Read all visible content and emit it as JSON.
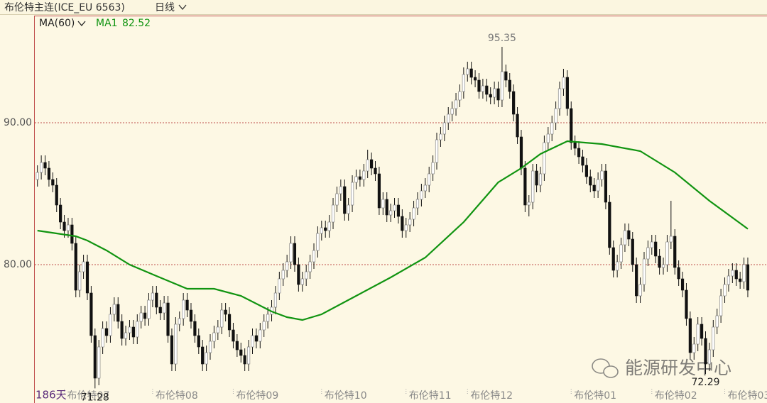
{
  "chart_data": {
    "type": "candlestick",
    "title": "布伦特主连(ICE_EU 6563)",
    "period": "日线",
    "indicator": "MA(60)",
    "days_label": "186天",
    "watermark": "能源研发中心",
    "ylim": [
      71.25,
      97.55
    ],
    "yticks": [
      {
        "value": 80,
        "label": "80.00"
      },
      {
        "value": 90,
        "label": "90.00"
      }
    ],
    "grid": true,
    "grid_color": "#c0504d",
    "xlim": [
      -0.5,
      190
    ],
    "xticks": [
      {
        "value": 7,
        "label": "布伦特07"
      },
      {
        "value": 30,
        "label": "布伦特08"
      },
      {
        "value": 51,
        "label": "布伦特09"
      },
      {
        "value": 74,
        "label": "布伦特10"
      },
      {
        "value": 96,
        "label": "布伦特11"
      },
      {
        "value": 112,
        "label": "布伦特12"
      },
      {
        "value": 139,
        "label": "布伦特01"
      },
      {
        "value": 160,
        "label": "布伦特02"
      },
      {
        "value": 179,
        "label": "布伦特03"
      }
    ],
    "up_color": "#ffffff",
    "down_color": "#111111",
    "open": [
      86.0,
      86.5,
      87.2,
      86.8,
      86.0,
      85.6,
      84.2,
      83.0,
      82.4,
      82.8,
      81.5,
      78.2,
      79.5,
      80.2,
      78.0,
      75.0,
      72.0,
      74.2,
      75.5,
      75.0,
      76.5,
      77.2,
      76.0,
      74.8,
      75.2,
      75.6,
      74.9,
      76.0,
      76.6,
      76.2,
      77.5,
      78.0,
      77.0,
      76.6,
      77.3,
      75.0,
      73.0,
      75.8,
      76.2,
      77.5,
      76.8,
      76.0,
      75.0,
      74.2,
      73.0,
      73.8,
      74.6,
      75.2,
      75.6,
      76.8,
      76.5,
      75.4,
      74.6,
      74.0,
      73.6,
      73.0,
      74.2,
      75.0,
      74.6,
      75.4,
      76.0,
      76.5,
      77.0,
      78.0,
      79.0,
      79.6,
      80.2,
      81.5,
      80.0,
      78.6,
      79.0,
      79.5,
      80.2,
      81.0,
      82.2,
      82.6,
      82.4,
      83.0,
      84.2,
      85.0,
      85.5,
      83.6,
      84.2,
      85.8,
      86.2,
      86.0,
      86.6,
      87.4,
      86.8,
      86.4,
      84.0,
      84.6,
      83.5,
      83.8,
      84.2,
      83.4,
      82.4,
      82.8,
      83.2,
      84.0,
      84.6,
      85.2,
      85.6,
      86.4,
      87.2,
      88.8,
      89.2,
      90.0,
      90.6,
      91.0,
      91.6,
      92.2,
      93.4,
      93.8,
      93.2,
      93.0,
      92.2,
      92.6,
      92.0,
      91.8,
      92.4,
      91.6,
      93.6,
      93.0,
      92.2,
      90.6,
      89.0,
      86.8,
      84.2,
      84.4,
      86.6,
      85.6,
      86.4,
      88.6,
      89.2,
      90.0,
      91.0,
      92.4,
      93.2,
      91.0,
      88.6,
      88.2,
      87.6,
      87.0,
      86.2,
      85.6,
      85.2,
      86.0,
      86.6,
      84.4,
      81.2,
      79.6,
      80.2,
      81.4,
      82.4,
      81.8,
      80.0,
      77.8,
      78.6,
      80.4,
      81.2,
      81.6,
      80.6,
      79.8,
      80.0,
      81.6,
      82.0,
      79.8,
      79.0,
      78.2,
      76.2,
      73.8,
      74.4,
      75.8,
      74.8,
      73.0,
      74.0,
      75.6,
      76.4,
      77.8,
      78.6,
      79.2,
      79.6,
      79.0,
      78.8,
      80.0
    ],
    "high": [
      87.0,
      87.7,
      87.7,
      87.3,
      86.5,
      86.1,
      84.7,
      83.5,
      83.3,
      83.3,
      82.0,
      80.0,
      80.7,
      80.7,
      78.5,
      75.5,
      74.7,
      76.0,
      76.0,
      77.0,
      77.7,
      77.7,
      76.5,
      75.7,
      76.1,
      76.1,
      76.5,
      77.1,
      77.1,
      78.0,
      78.5,
      78.5,
      77.5,
      77.8,
      77.8,
      75.5,
      76.3,
      76.7,
      78.0,
      78.0,
      77.3,
      76.5,
      75.5,
      74.7,
      74.3,
      75.1,
      75.7,
      76.1,
      77.3,
      77.3,
      77.0,
      75.9,
      75.1,
      74.5,
      74.1,
      74.7,
      75.5,
      75.5,
      75.9,
      76.5,
      77.0,
      77.5,
      78.5,
      79.5,
      80.1,
      80.7,
      82.0,
      82.0,
      80.5,
      79.5,
      80.0,
      80.7,
      81.5,
      82.7,
      83.1,
      83.1,
      83.5,
      84.7,
      85.5,
      86.0,
      86.0,
      84.7,
      86.3,
      86.7,
      86.7,
      87.1,
      88.1,
      87.9,
      87.3,
      86.9,
      85.1,
      85.1,
      84.3,
      84.7,
      84.7,
      83.9,
      83.3,
      83.7,
      84.5,
      85.1,
      85.7,
      86.1,
      86.9,
      87.7,
      89.3,
      89.7,
      90.5,
      91.1,
      91.5,
      92.1,
      92.7,
      93.9,
      94.3,
      94.3,
      93.7,
      93.5,
      93.1,
      93.1,
      92.5,
      92.9,
      92.9,
      95.35,
      94.1,
      93.5,
      92.7,
      91.1,
      89.5,
      87.3,
      84.9,
      87.1,
      87.1,
      86.9,
      89.1,
      89.7,
      90.5,
      91.5,
      92.9,
      93.8,
      93.7,
      91.5,
      89.1,
      88.7,
      88.1,
      87.5,
      86.7,
      86.1,
      86.5,
      87.1,
      87.1,
      84.9,
      81.7,
      80.7,
      81.9,
      82.9,
      82.9,
      82.3,
      80.5,
      79.1,
      80.9,
      81.7,
      82.1,
      82.1,
      81.1,
      80.5,
      82.1,
      84.5,
      82.5,
      80.3,
      79.5,
      78.7,
      76.7,
      74.9,
      76.3,
      76.3,
      75.3,
      74.5,
      76.1,
      76.9,
      78.3,
      79.1,
      79.7,
      80.1,
      80.1,
      79.5,
      80.5,
      80.5
    ],
    "low": [
      85.5,
      86.0,
      86.3,
      85.5,
      85.1,
      83.7,
      82.5,
      81.9,
      81.9,
      81.0,
      77.7,
      77.7,
      79.0,
      77.5,
      74.5,
      71.28,
      71.5,
      73.7,
      74.5,
      74.5,
      76.0,
      75.5,
      74.3,
      74.3,
      74.7,
      74.4,
      74.4,
      75.5,
      75.7,
      75.7,
      77.0,
      76.5,
      76.1,
      76.1,
      74.5,
      72.5,
      72.5,
      75.3,
      75.7,
      76.3,
      75.5,
      74.5,
      73.7,
      72.5,
      72.5,
      73.3,
      74.1,
      74.7,
      75.1,
      76.0,
      74.9,
      74.1,
      73.5,
      73.1,
      72.5,
      72.5,
      73.7,
      74.1,
      74.1,
      74.9,
      75.5,
      76.0,
      76.5,
      77.5,
      78.5,
      79.1,
      79.7,
      79.5,
      78.1,
      78.1,
      78.5,
      79.0,
      79.7,
      80.5,
      81.7,
      81.9,
      81.9,
      82.5,
      83.7,
      84.5,
      83.1,
      83.1,
      83.7,
      85.3,
      85.5,
      85.5,
      86.1,
      86.3,
      85.9,
      83.5,
      83.5,
      83.0,
      83.0,
      83.3,
      82.9,
      81.9,
      81.9,
      82.3,
      82.7,
      83.5,
      84.1,
      84.7,
      85.1,
      85.9,
      86.7,
      88.3,
      88.7,
      89.5,
      90.1,
      90.5,
      91.1,
      91.7,
      92.9,
      92.7,
      92.5,
      91.7,
      91.7,
      91.5,
      91.3,
      91.3,
      91.1,
      91.1,
      92.5,
      91.7,
      90.1,
      88.5,
      86.3,
      83.7,
      83.4,
      83.9,
      85.1,
      85.1,
      85.9,
      88.1,
      88.7,
      89.5,
      90.5,
      91.9,
      90.5,
      88.1,
      87.7,
      87.1,
      86.5,
      85.7,
      85.1,
      84.7,
      84.7,
      85.5,
      83.9,
      80.7,
      79.1,
      79.1,
      79.7,
      80.9,
      81.3,
      79.5,
      77.3,
      77.3,
      78.1,
      79.9,
      80.7,
      80.1,
      79.3,
      79.3,
      79.5,
      81.1,
      79.3,
      78.5,
      77.7,
      75.7,
      73.3,
      73.3,
      73.9,
      74.3,
      72.29,
      72.5,
      73.5,
      75.1,
      75.9,
      77.3,
      78.1,
      78.7,
      78.5,
      78.3,
      78.3,
      77.7
    ],
    "close": [
      86.5,
      87.2,
      86.8,
      86.0,
      85.6,
      84.2,
      83.0,
      82.4,
      82.8,
      81.5,
      78.2,
      79.5,
      80.2,
      78.0,
      75.0,
      72.0,
      74.2,
      75.5,
      75.0,
      76.5,
      77.2,
      76.0,
      74.8,
      75.2,
      75.6,
      74.9,
      76.0,
      76.6,
      76.2,
      77.5,
      78.0,
      77.0,
      76.6,
      77.3,
      75.0,
      73.0,
      75.8,
      76.2,
      77.5,
      76.8,
      76.0,
      75.0,
      74.2,
      73.0,
      73.8,
      74.6,
      75.2,
      75.6,
      76.8,
      76.5,
      75.4,
      74.6,
      74.0,
      73.6,
      73.0,
      74.2,
      75.0,
      74.6,
      75.4,
      76.0,
      76.5,
      77.0,
      78.0,
      79.0,
      79.6,
      80.2,
      81.5,
      80.0,
      78.6,
      79.0,
      79.5,
      80.2,
      81.0,
      82.2,
      82.6,
      82.4,
      83.0,
      84.2,
      85.0,
      85.5,
      83.6,
      84.2,
      85.8,
      86.2,
      86.0,
      86.6,
      87.4,
      86.8,
      86.4,
      84.0,
      84.6,
      83.5,
      83.8,
      84.2,
      83.4,
      82.4,
      82.8,
      83.2,
      84.0,
      84.6,
      85.2,
      85.6,
      86.4,
      87.2,
      88.8,
      89.2,
      90.0,
      90.6,
      91.0,
      91.6,
      92.2,
      93.4,
      93.8,
      93.2,
      93.0,
      92.2,
      92.6,
      92.0,
      91.8,
      92.4,
      91.6,
      93.6,
      93.0,
      92.2,
      90.6,
      89.0,
      86.8,
      84.2,
      84.4,
      86.6,
      85.6,
      86.4,
      88.6,
      89.2,
      90.0,
      91.0,
      92.4,
      93.2,
      91.0,
      88.6,
      88.2,
      87.6,
      87.0,
      86.2,
      85.6,
      85.2,
      86.0,
      86.6,
      84.4,
      81.2,
      79.6,
      80.2,
      81.4,
      82.4,
      81.8,
      80.0,
      77.8,
      78.6,
      80.4,
      81.2,
      81.6,
      80.6,
      79.8,
      80.0,
      81.6,
      82.0,
      79.8,
      79.0,
      78.2,
      76.2,
      73.8,
      74.4,
      75.8,
      74.8,
      73.0,
      74.0,
      75.6,
      76.4,
      77.8,
      78.6,
      79.2,
      79.6,
      79.0,
      78.8,
      80.0,
      78.2
    ],
    "series": [
      {
        "name": "MA1",
        "color": "#119411",
        "x": [
          0,
          10,
          13,
          18,
          24,
          31,
          39,
          46,
          53,
          61,
          65,
          69,
          74,
          83,
          92,
          101,
          111,
          120,
          126,
          131,
          138,
          147,
          157,
          166,
          175,
          185
        ],
        "values": [
          82.4,
          82.0,
          81.7,
          81.0,
          80.0,
          79.2,
          78.3,
          78.3,
          77.8,
          76.7,
          76.3,
          76.1,
          76.5,
          77.8,
          79.1,
          80.5,
          83.0,
          85.8,
          86.8,
          87.8,
          88.7,
          88.5,
          88.0,
          86.5,
          84.5,
          82.52
        ]
      }
    ]
  }
}
